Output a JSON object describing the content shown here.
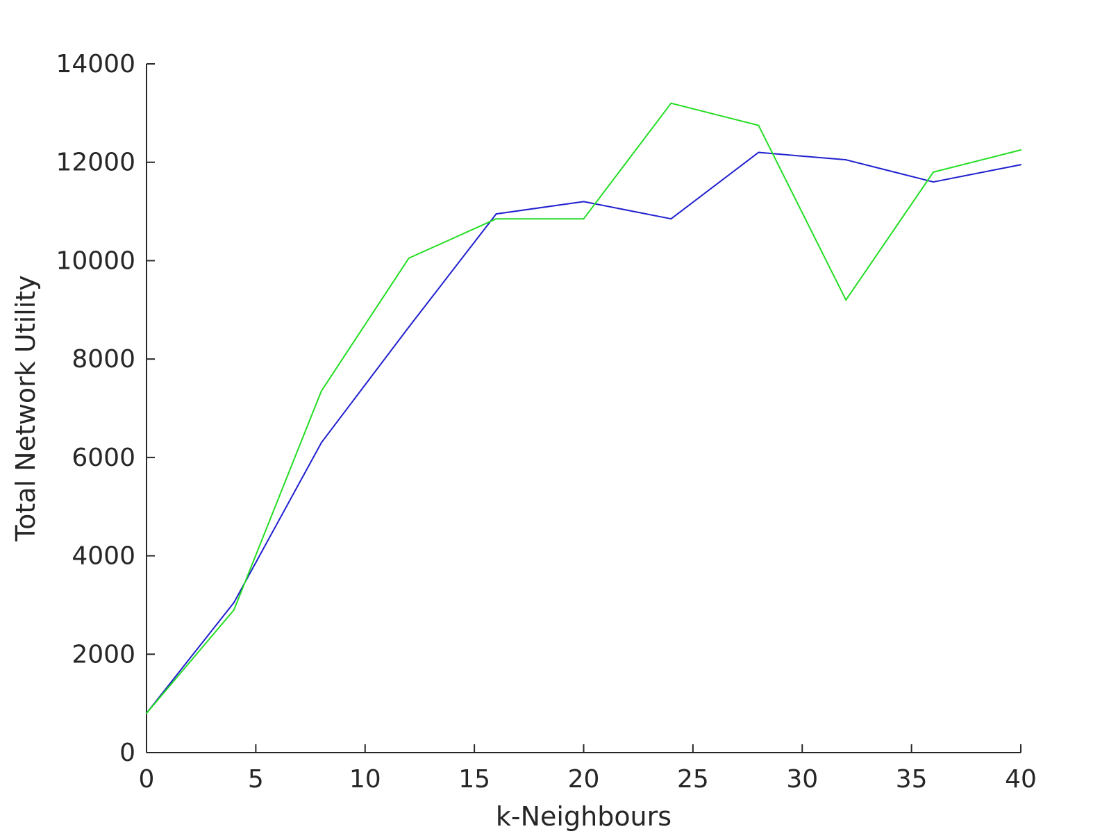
{
  "chart_data": {
    "type": "line",
    "title": "",
    "xlabel": "k-Neighbours",
    "ylabel": "Total Network Utility",
    "xlim": [
      0,
      40
    ],
    "ylim": [
      0,
      14000
    ],
    "xticks": [
      0,
      5,
      10,
      15,
      20,
      25,
      30,
      35,
      40
    ],
    "yticks": [
      0,
      2000,
      4000,
      6000,
      8000,
      10000,
      12000,
      14000
    ],
    "x": [
      0,
      4,
      8,
      12,
      16,
      20,
      24,
      28,
      32,
      36,
      40
    ],
    "grid": false,
    "series": [
      {
        "color": "#1f1fcf",
        "values": [
          800,
          3050,
          6300,
          8650,
          10950,
          11200,
          10850,
          12200,
          12050,
          11600,
          11950
        ]
      },
      {
        "color": "#22dd22",
        "values": [
          800,
          2900,
          7350,
          10050,
          10850,
          10850,
          13200,
          12750,
          9200,
          11800,
          12250
        ]
      }
    ]
  }
}
